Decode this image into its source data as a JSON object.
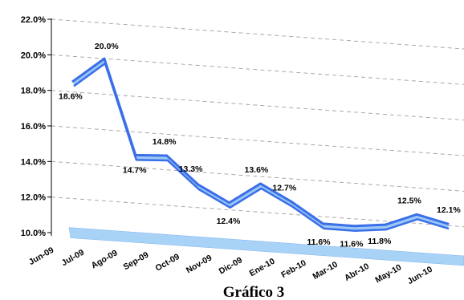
{
  "chart_data": {
    "type": "line",
    "categories": [
      "Jun-09",
      "Jul-09",
      "Ago-09",
      "Sep-09",
      "Oct-09",
      "Nov-09",
      "Dic-09",
      "Ene-10",
      "Feb-10",
      "Mar-10",
      "Abr-10",
      "May-10",
      "Jun-10"
    ],
    "series": [
      {
        "values": [
          18.6,
          20.0,
          14.7,
          14.8,
          13.3,
          12.4,
          13.6,
          12.7,
          11.6,
          11.6,
          11.8,
          12.5,
          12.1
        ]
      }
    ],
    "data_labels": [
      "18.6%",
      "20.0%",
      "14.7%",
      "14.8%",
      "13.3%",
      "12.4%",
      "13.6%",
      "12.7%",
      "11.6%",
      "11.6%",
      "11.8%",
      "12.5%",
      "12.1%"
    ],
    "y_ticks": [
      "10.0%",
      "12.0%",
      "14.0%",
      "16.0%",
      "18.0%",
      "20.0%",
      "22.0%"
    ],
    "ylim": [
      10,
      22
    ],
    "grid": true,
    "style": "3d-ribbon",
    "colors": {
      "line": "#3a6fe8",
      "ribbon_face": "#9cc8f5",
      "floor": "#a9d2f7",
      "grid": "#a0a0a0"
    }
  },
  "caption": "Gráfico 3"
}
